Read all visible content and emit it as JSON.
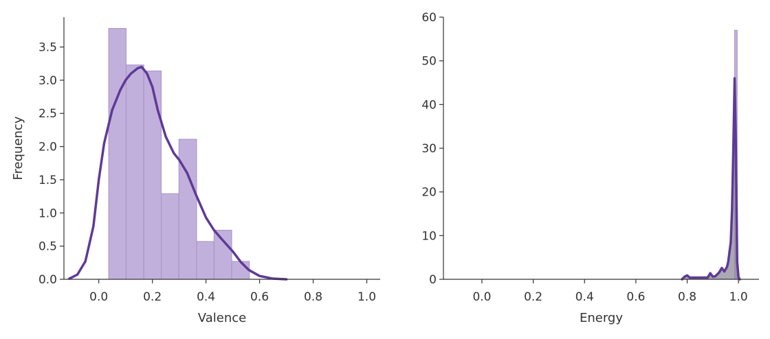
{
  "chart_data": [
    {
      "type": "bar",
      "chart_kind": "histogram with density curve",
      "xlabel": "Valence",
      "ylabel": "Frequency",
      "xlim": [
        -0.13,
        1.05
      ],
      "ylim": [
        0,
        3.95
      ],
      "xticks": [
        0.0,
        0.2,
        0.4,
        0.6,
        0.8,
        1.0
      ],
      "yticks": [
        0.0,
        0.5,
        1.0,
        1.5,
        2.0,
        2.5,
        3.0,
        3.5
      ],
      "grid": false,
      "colors": {
        "bars": "#c2b0dc",
        "bar_edge": "#a592c7",
        "curve": "#5e3a96"
      },
      "histogram": {
        "bin_edges": [
          0.037,
          0.102,
          0.168,
          0.233,
          0.299,
          0.365,
          0.43,
          0.496,
          0.562
        ],
        "values": [
          3.78,
          3.23,
          3.14,
          1.29,
          2.11,
          0.57,
          0.74,
          0.27
        ]
      },
      "density_curve": {
        "x": [
          -0.11,
          -0.08,
          -0.05,
          -0.02,
          0.0,
          0.02,
          0.05,
          0.08,
          0.1,
          0.12,
          0.145,
          0.16,
          0.18,
          0.2,
          0.22,
          0.25,
          0.28,
          0.3,
          0.33,
          0.36,
          0.4,
          0.43,
          0.46,
          0.5,
          0.53,
          0.56,
          0.6,
          0.65,
          0.7
        ],
        "y": [
          0.01,
          0.07,
          0.27,
          0.8,
          1.5,
          2.05,
          2.55,
          2.85,
          3.0,
          3.1,
          3.18,
          3.2,
          3.1,
          2.9,
          2.55,
          2.15,
          1.9,
          1.8,
          1.6,
          1.3,
          0.93,
          0.74,
          0.6,
          0.42,
          0.26,
          0.14,
          0.05,
          0.01,
          0.0
        ]
      }
    },
    {
      "type": "bar",
      "chart_kind": "histogram with density curve",
      "xlabel": "Energy",
      "ylabel": "",
      "xlim": [
        -0.15,
        1.08
      ],
      "ylim": [
        0,
        60
      ],
      "xticks": [
        0.0,
        0.2,
        0.4,
        0.6,
        0.8,
        1.0
      ],
      "yticks": [
        0,
        10,
        20,
        30,
        40,
        50,
        60
      ],
      "grid": false,
      "colors": {
        "bars": "#c2b0dc",
        "bar_edge": "#a592c7",
        "curve": "#5e3a96",
        "fill": "#8f8a9a"
      },
      "histogram": {
        "bin_edges": [
          0.985,
          0.995
        ],
        "values": [
          57.0
        ]
      },
      "density_curve": {
        "x": [
          0.78,
          0.79,
          0.8,
          0.81,
          0.88,
          0.89,
          0.9,
          0.91,
          0.925,
          0.935,
          0.945,
          0.955,
          0.96,
          0.97,
          0.975,
          0.98,
          0.985,
          0.99,
          0.995,
          1.0,
          1.005
        ],
        "y": [
          0.0,
          0.6,
          0.9,
          0.4,
          0.4,
          1.4,
          0.6,
          0.7,
          1.6,
          2.6,
          1.8,
          2.8,
          4.0,
          8.5,
          16.0,
          30.0,
          46.0,
          30.0,
          4.0,
          0.5,
          0.0
        ]
      }
    }
  ]
}
